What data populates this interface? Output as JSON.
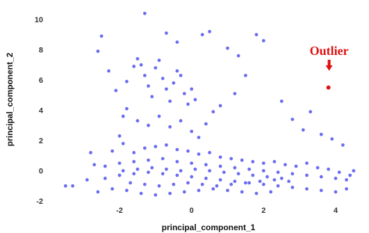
{
  "chart_data": {
    "type": "scatter",
    "title": "",
    "xlabel": "principal_component_1",
    "ylabel": "principal_component_2",
    "xlim": [
      -3.6,
      4.6
    ],
    "ylim": [
      -2.3,
      10.7
    ],
    "x_ticks": [
      -2,
      0,
      2,
      4
    ],
    "y_ticks": [
      -2,
      0,
      2,
      4,
      6,
      8,
      10
    ],
    "grid": false,
    "legend": "none",
    "point_color": "#6b6cf0",
    "series": [
      {
        "values": [
          [
            -2.5,
            8.9
          ],
          [
            -2.6,
            7.9
          ],
          [
            -2.3,
            6.6
          ],
          [
            -2.1,
            5.3
          ],
          [
            -1.9,
            3.6
          ],
          [
            -1.8,
            5.9
          ],
          [
            -1.6,
            6.9
          ],
          [
            -1.5,
            7.4
          ],
          [
            -1.4,
            7.0
          ],
          [
            -1.3,
            6.3
          ],
          [
            -1.2,
            5.6
          ],
          [
            -1.1,
            4.9
          ],
          [
            -1.0,
            6.8
          ],
          [
            -0.9,
            7.3
          ],
          [
            -0.8,
            6.1
          ],
          [
            -0.7,
            5.4
          ],
          [
            -0.6,
            4.6
          ],
          [
            -0.5,
            5.8
          ],
          [
            -0.4,
            6.6
          ],
          [
            -0.3,
            6.3
          ],
          [
            -0.2,
            5.1
          ],
          [
            -0.1,
            4.4
          ],
          [
            0.0,
            5.4
          ],
          [
            0.1,
            4.7
          ],
          [
            -1.3,
            10.4
          ],
          [
            -0.7,
            9.1
          ],
          [
            -0.4,
            8.5
          ],
          [
            0.3,
            9.0
          ],
          [
            0.5,
            9.2
          ],
          [
            1.0,
            8.1
          ],
          [
            1.8,
            9.0
          ],
          [
            2.0,
            8.6
          ],
          [
            1.3,
            7.6
          ],
          [
            1.5,
            6.3
          ],
          [
            1.2,
            5.1
          ],
          [
            0.8,
            4.3
          ],
          [
            0.6,
            3.9
          ],
          [
            0.4,
            3.1
          ],
          [
            2.5,
            4.6
          ],
          [
            2.8,
            3.4
          ],
          [
            3.1,
            2.7
          ],
          [
            3.3,
            3.9
          ],
          [
            3.6,
            2.4
          ],
          [
            3.9,
            2.1
          ],
          [
            4.2,
            1.7
          ],
          [
            -1.8,
            4.1
          ],
          [
            -1.5,
            3.3
          ],
          [
            -1.2,
            3.0
          ],
          [
            -0.9,
            3.6
          ],
          [
            -0.6,
            2.9
          ],
          [
            -0.3,
            3.3
          ],
          [
            0.0,
            2.6
          ],
          [
            0.2,
            2.2
          ],
          [
            -2.0,
            2.3
          ],
          [
            -2.8,
            1.2
          ],
          [
            -2.7,
            0.4
          ],
          [
            -2.9,
            -0.6
          ],
          [
            -3.3,
            -1.0
          ],
          [
            -3.5,
            -1.0
          ],
          [
            -2.6,
            -1.4
          ],
          [
            -2.2,
            1.3
          ],
          [
            -1.9,
            1.8
          ],
          [
            -1.6,
            1.2
          ],
          [
            -1.3,
            1.5
          ],
          [
            -1.0,
            1.6
          ],
          [
            -0.7,
            1.7
          ],
          [
            -0.4,
            1.4
          ],
          [
            -0.1,
            1.3
          ],
          [
            0.2,
            1.1
          ],
          [
            0.5,
            1.2
          ],
          [
            0.8,
            0.9
          ],
          [
            1.1,
            0.8
          ],
          [
            1.4,
            0.7
          ],
          [
            1.7,
            0.6
          ],
          [
            2.0,
            0.5
          ],
          [
            2.3,
            0.6
          ],
          [
            2.6,
            0.4
          ],
          [
            2.9,
            0.3
          ],
          [
            3.2,
            0.5
          ],
          [
            3.5,
            0.2
          ],
          [
            3.8,
            0.1
          ],
          [
            4.1,
            -0.1
          ],
          [
            4.4,
            -0.3
          ],
          [
            4.5,
            0.0
          ],
          [
            -2.4,
            0.3
          ],
          [
            -2.0,
            0.5
          ],
          [
            -1.6,
            0.6
          ],
          [
            -1.2,
            0.7
          ],
          [
            -0.8,
            0.8
          ],
          [
            -0.4,
            0.6
          ],
          [
            0.0,
            0.5
          ],
          [
            0.4,
            0.4
          ],
          [
            0.8,
            0.3
          ],
          [
            1.2,
            0.2
          ],
          [
            1.6,
            0.1
          ],
          [
            2.0,
            0.0
          ],
          [
            2.4,
            -0.1
          ],
          [
            2.8,
            -0.2
          ],
          [
            3.2,
            -0.3
          ],
          [
            3.6,
            -0.4
          ],
          [
            4.0,
            -0.5
          ],
          [
            4.3,
            -0.6
          ],
          [
            -2.4,
            -0.5
          ],
          [
            -2.0,
            -0.3
          ],
          [
            -1.6,
            -0.2
          ],
          [
            -1.2,
            -0.1
          ],
          [
            -0.8,
            -0.2
          ],
          [
            -0.4,
            -0.3
          ],
          [
            0.0,
            -0.4
          ],
          [
            0.4,
            -0.5
          ],
          [
            0.8,
            -0.6
          ],
          [
            1.2,
            -0.7
          ],
          [
            1.6,
            -0.8
          ],
          [
            2.0,
            -0.9
          ],
          [
            2.4,
            -1.0
          ],
          [
            2.8,
            -1.1
          ],
          [
            3.2,
            -1.2
          ],
          [
            3.6,
            -1.3
          ],
          [
            4.0,
            -1.4
          ],
          [
            4.3,
            -1.2
          ],
          [
            -2.2,
            -1.2
          ],
          [
            -1.8,
            -1.3
          ],
          [
            -1.4,
            -1.5
          ],
          [
            -1.0,
            -1.6
          ],
          [
            -0.6,
            -1.5
          ],
          [
            -0.2,
            -1.4
          ],
          [
            0.2,
            -1.3
          ],
          [
            0.6,
            -1.2
          ],
          [
            1.0,
            -1.3
          ],
          [
            1.4,
            -1.4
          ],
          [
            1.8,
            -1.5
          ],
          [
            2.2,
            -1.4
          ],
          [
            -1.7,
            -0.8
          ],
          [
            -1.3,
            -0.9
          ],
          [
            -0.9,
            -1.0
          ],
          [
            -0.5,
            -0.9
          ],
          [
            -0.1,
            -0.8
          ],
          [
            0.3,
            -0.9
          ],
          [
            0.7,
            -1.0
          ],
          [
            1.1,
            -0.9
          ],
          [
            1.5,
            -0.8
          ],
          [
            1.9,
            -0.7
          ],
          [
            2.3,
            -0.6
          ],
          [
            2.7,
            -0.7
          ],
          [
            -1.9,
            0.0
          ],
          [
            -1.5,
            0.1
          ],
          [
            -1.1,
            0.2
          ],
          [
            -0.7,
            0.1
          ],
          [
            -0.3,
            0.0
          ],
          [
            0.1,
            0.1
          ],
          [
            0.5,
            0.0
          ],
          [
            0.9,
            -0.1
          ],
          [
            1.3,
            -0.2
          ],
          [
            1.7,
            -0.3
          ],
          [
            2.1,
            -0.4
          ],
          [
            2.5,
            -0.5
          ]
        ]
      }
    ],
    "annotations": [
      {
        "text": "Outlier",
        "x": 3.8,
        "y": 5.5,
        "color": "#e01010"
      }
    ],
    "outlier_color": "#e01010"
  }
}
